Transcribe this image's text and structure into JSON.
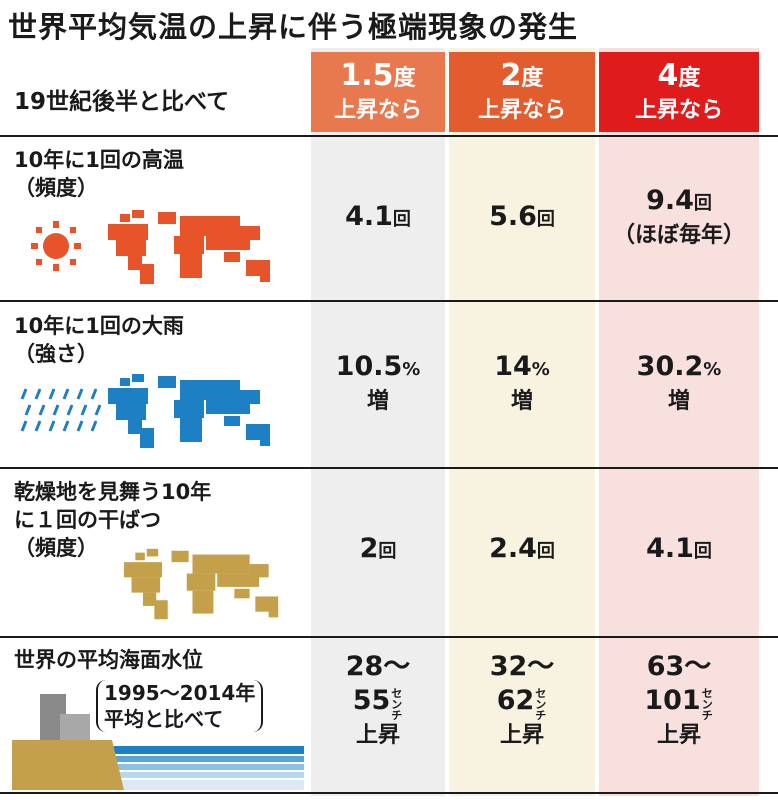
{
  "title": "世界平均気温の上昇に伴う極端現象の発生",
  "subheading": "19世紀後半と比べて",
  "columns": [
    {
      "num": "1.5",
      "deg": "度",
      "sub": "上昇なら",
      "color": "#e8794e"
    },
    {
      "num": "2",
      "deg": "度",
      "sub": "上昇なら",
      "color": "#e25c2e"
    },
    {
      "num": "4",
      "deg": "度",
      "sub": "上昇なら",
      "color": "#df1b1b"
    }
  ],
  "rows": {
    "heat": {
      "line1": "10年に1回の高温",
      "line2": "（頻度）",
      "icon_color": "#e8542a",
      "c1": {
        "num": "4.1",
        "unit": "回"
      },
      "c2": {
        "num": "5.6",
        "unit": "回"
      },
      "c3": {
        "num": "9.4",
        "unit": "回",
        "note": "（ほぼ毎年）"
      }
    },
    "rain": {
      "line1": "10年に1回の大雨",
      "line2": "（強さ）",
      "icon_color": "#1d7fc4",
      "c1": {
        "num": "10.5",
        "unit": "%",
        "sub": "増"
      },
      "c2": {
        "num": "14",
        "unit": "%",
        "sub": "増"
      },
      "c3": {
        "num": "30.2",
        "unit": "%",
        "sub": "増"
      }
    },
    "drought": {
      "line1": "乾燥地を見舞う10年",
      "line2": "に１回の干ばつ",
      "line3": "（頻度）",
      "icon_color": "#c4a04a",
      "c1": {
        "num": "2",
        "unit": "回"
      },
      "c2": {
        "num": "2.4",
        "unit": "回"
      },
      "c3": {
        "num": "4.1",
        "unit": "回"
      }
    },
    "sea": {
      "line1": "世界の平均海面水位",
      "paren1": "1995～2014年",
      "paren2": "平均と比べて",
      "c1": {
        "a": "28～",
        "b": "55",
        "unit": "センチ",
        "sub": "上昇"
      },
      "c2": {
        "a": "32～",
        "b": "62",
        "unit": "センチ",
        "sub": "上昇"
      },
      "c3": {
        "a": "63～",
        "b": "101",
        "unit": "センチ",
        "sub": "上昇"
      }
    }
  }
}
